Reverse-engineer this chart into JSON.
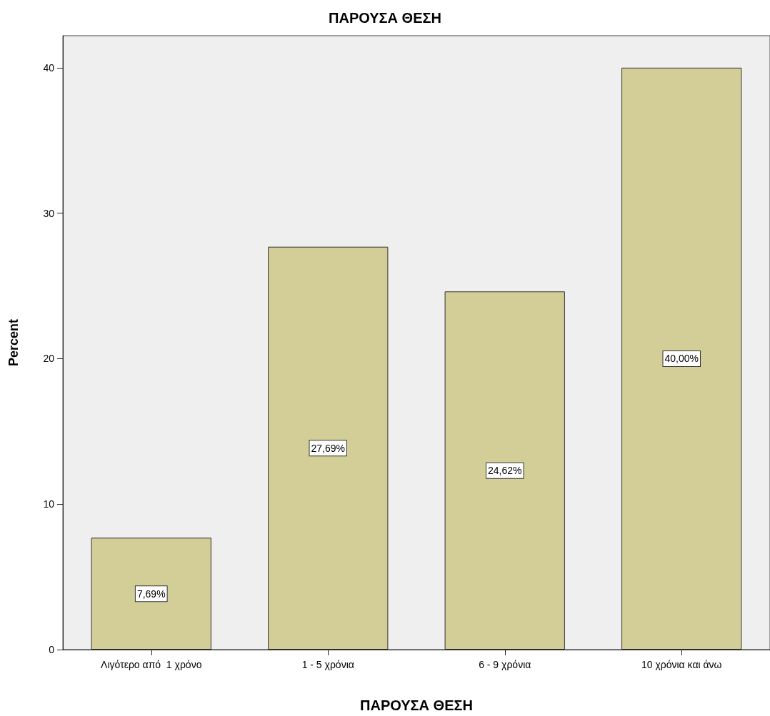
{
  "chart_data": {
    "type": "bar",
    "title": "ΠΑΡΟΥΣΑ ΘΕΣΗ",
    "xlabel": "ΠΑΡΟΥΣΑ ΘΕΣΗ",
    "ylabel": "Percent",
    "categories": [
      "Λιγότερο από  1 χρόνο",
      "1 - 5 χρόνια",
      "6 - 9 χρόνια",
      "10 χρόνια και άνω"
    ],
    "values": [
      7.69,
      27.69,
      24.62,
      40.0
    ],
    "value_labels": [
      "7,69%",
      "27,69%",
      "24,62%",
      "40,00%"
    ],
    "color": "#d3ce97",
    "ylim": [
      0,
      42.2
    ],
    "yticks": [
      0,
      10,
      20,
      30,
      40
    ],
    "grid": false
  }
}
